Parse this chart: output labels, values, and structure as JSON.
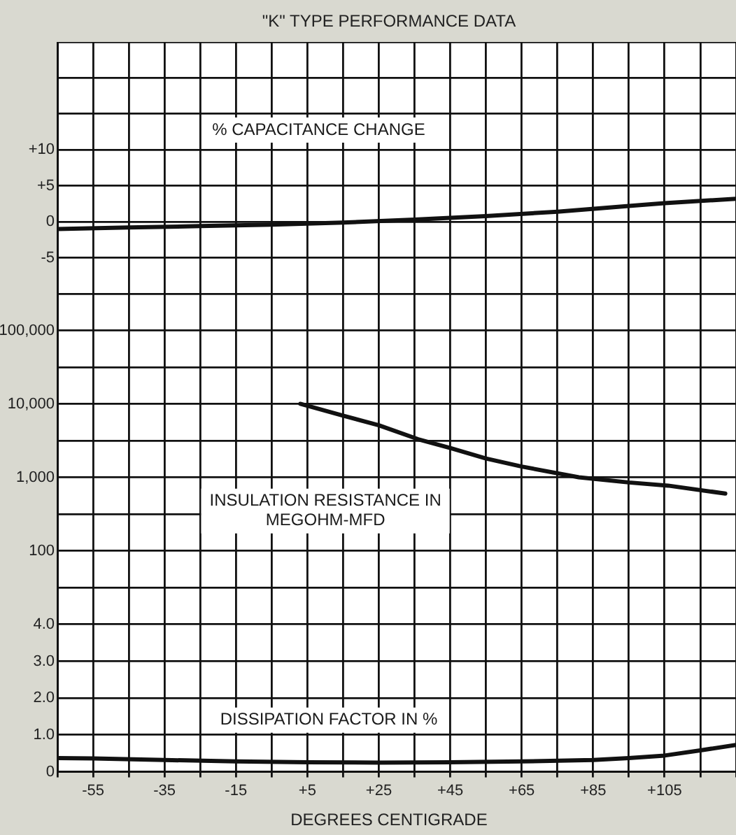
{
  "chart_data": [
    {
      "type": "line",
      "title": "\"K\" TYPE PERFORMANCE DATA",
      "annotations": [
        "% CAPACITANCE CHANGE"
      ],
      "xlim": [
        -65,
        125
      ],
      "xticks": [
        {
          "value": -65,
          "label": null
        },
        {
          "value": -55,
          "label": null
        },
        {
          "value": -45,
          "label": null
        },
        {
          "value": -35,
          "label": null
        },
        {
          "value": -25,
          "label": null
        },
        {
          "value": -15,
          "label": null
        },
        {
          "value": -5,
          "label": null
        },
        {
          "value": 5,
          "label": null
        },
        {
          "value": 15,
          "label": null
        },
        {
          "value": 25,
          "label": null
        },
        {
          "value": 35,
          "label": null
        },
        {
          "value": 45,
          "label": null
        },
        {
          "value": 55,
          "label": null
        },
        {
          "value": 65,
          "label": null
        },
        {
          "value": 75,
          "label": null
        },
        {
          "value": 85,
          "label": null
        },
        {
          "value": 95,
          "label": null
        },
        {
          "value": 105,
          "label": null
        },
        {
          "value": 115,
          "label": null
        },
        {
          "value": 125,
          "label": null
        }
      ],
      "ylim": [
        -10,
        25
      ],
      "yticks": [
        {
          "value": -10,
          "label": null
        },
        -5,
        0,
        {
          "value": 5,
          "label": "+5"
        },
        {
          "value": 10,
          "label": "+10"
        },
        {
          "value": 15,
          "label": null
        },
        {
          "value": 20,
          "label": null
        },
        {
          "value": 25,
          "label": null
        }
      ],
      "tick_labels": "y",
      "grid": true,
      "marker": "none",
      "series": [
        {
          "color": "#111111",
          "x": [
            -65,
            -45,
            -25,
            -5,
            15,
            35,
            55,
            75,
            95,
            105,
            125
          ],
          "values": [
            -1.0,
            -0.8,
            -0.6,
            -0.4,
            -0.1,
            0.3,
            0.8,
            1.4,
            2.2,
            2.6,
            3.2
          ]
        }
      ]
    },
    {
      "type": "line",
      "annotations": [
        "INSULATION RESISTANCE IN MEGOHM-MFD"
      ],
      "xlim": [
        -65,
        125
      ],
      "xticks": [
        {
          "value": -65,
          "label": null
        },
        {
          "value": -55,
          "label": null
        },
        {
          "value": -45,
          "label": null
        },
        {
          "value": -35,
          "label": null
        },
        {
          "value": -25,
          "label": null
        },
        {
          "value": -15,
          "label": null
        },
        {
          "value": -5,
          "label": null
        },
        {
          "value": 5,
          "label": null
        },
        {
          "value": 15,
          "label": null
        },
        {
          "value": 25,
          "label": null
        },
        {
          "value": 35,
          "label": null
        },
        {
          "value": 45,
          "label": null
        },
        {
          "value": 55,
          "label": null
        },
        {
          "value": 65,
          "label": null
        },
        {
          "value": 75,
          "label": null
        },
        {
          "value": 85,
          "label": null
        },
        {
          "value": 95,
          "label": null
        },
        {
          "value": 105,
          "label": null
        },
        {
          "value": 115,
          "label": null
        },
        {
          "value": 125,
          "label": null
        }
      ],
      "ylim": [
        31.6,
        316000
      ],
      "yticks": [
        {
          "value": 31.6,
          "label": null
        },
        100,
        {
          "value": 316,
          "label": null
        },
        {
          "value": 1000,
          "label": "1,000"
        },
        {
          "value": 3160,
          "label": null
        },
        {
          "value": 10000,
          "label": "10,000"
        },
        {
          "value": 31600,
          "label": null
        },
        {
          "value": 100000,
          "label": "100,000"
        },
        {
          "value": 316000,
          "label": null
        }
      ],
      "log": true,
      "tick_labels": "y",
      "grid": true,
      "marker": "none",
      "series": [
        {
          "color": "#111111",
          "x": [
            3,
            15,
            25,
            36,
            45,
            55,
            65,
            81,
            95,
            106,
            122
          ],
          "values": [
            10000,
            6900,
            5100,
            3300,
            2500,
            1800,
            1400,
            1000,
            850,
            770,
            600
          ]
        }
      ]
    },
    {
      "type": "line",
      "xlabel": "DEGREES CENTIGRADE",
      "annotations": [
        "DISSIPATION FACTOR IN %"
      ],
      "xlim": [
        -65,
        125
      ],
      "xticks": [
        {
          "value": -65,
          "label": null
        },
        -55,
        {
          "value": -45,
          "label": null
        },
        -35,
        {
          "value": -25,
          "label": null
        },
        -15,
        {
          "value": -5,
          "label": null
        },
        {
          "value": 5,
          "label": "+5"
        },
        {
          "value": 15,
          "label": null
        },
        {
          "value": 25,
          "label": "+25"
        },
        {
          "value": 35,
          "label": null
        },
        {
          "value": 45,
          "label": "+45"
        },
        {
          "value": 55,
          "label": null
        },
        {
          "value": 65,
          "label": "+65"
        },
        {
          "value": 75,
          "label": null
        },
        {
          "value": 85,
          "label": "+85"
        },
        {
          "value": 95,
          "label": null
        },
        {
          "value": 105,
          "label": "+105"
        },
        {
          "value": 115,
          "label": null
        },
        {
          "value": 125,
          "label": null
        }
      ],
      "ylim": [
        0,
        5
      ],
      "yticks": [
        0,
        {
          "value": 1,
          "label": "1.0"
        },
        {
          "value": 2,
          "label": "2.0"
        },
        {
          "value": 3,
          "label": "3.0"
        },
        {
          "value": 4,
          "label": "4.0"
        },
        {
          "value": 5,
          "label": null
        }
      ],
      "grid": true,
      "marker": "none",
      "series": [
        {
          "color": "#111111",
          "x": [
            -65,
            -55,
            -35,
            -15,
            5,
            25,
            45,
            65,
            85,
            95,
            105,
            115,
            125
          ],
          "values": [
            0.37,
            0.36,
            0.32,
            0.28,
            0.26,
            0.25,
            0.26,
            0.28,
            0.32,
            0.37,
            0.44,
            0.58,
            0.73
          ]
        }
      ]
    }
  ]
}
